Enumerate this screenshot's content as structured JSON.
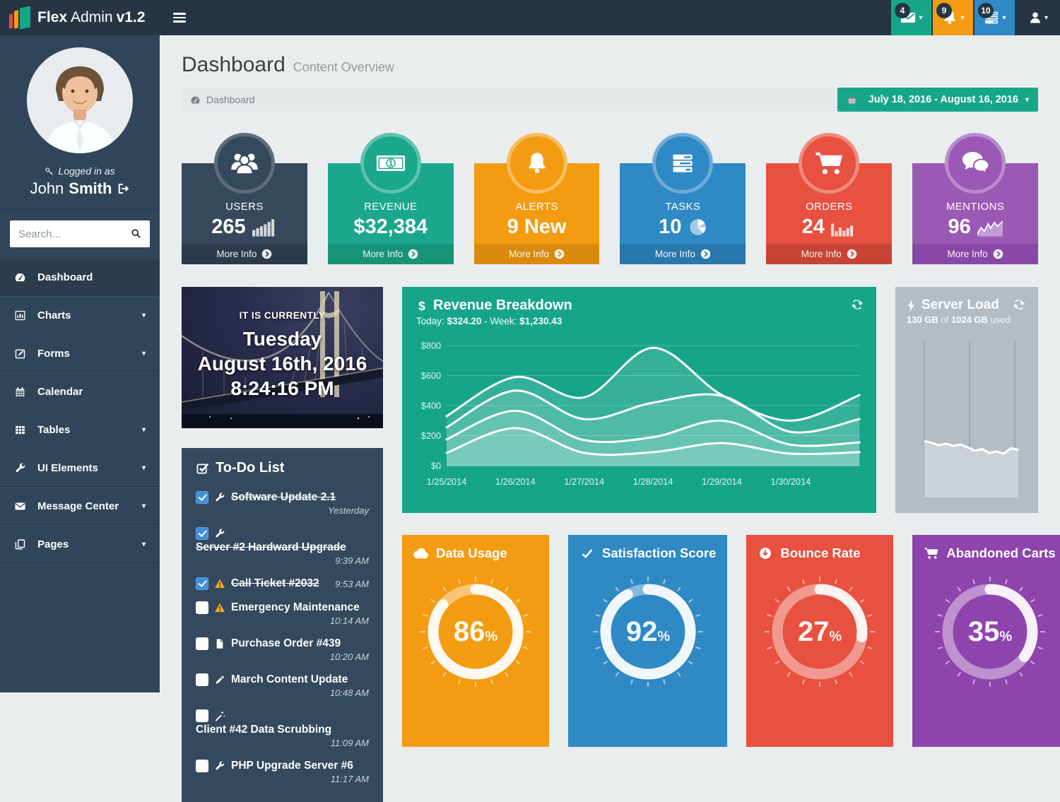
{
  "navbar": {
    "brand": {
      "word1": "Flex",
      "word2": "Admin",
      "version": "v1.2"
    },
    "dropdowns": [
      {
        "name": "messages",
        "count": "4",
        "color": "#18a689",
        "icon": "envelope"
      },
      {
        "name": "notifications",
        "count": "9",
        "color": "#f39c12",
        "icon": "bell"
      },
      {
        "name": "tasks",
        "count": "10",
        "color": "#2f89c5",
        "icon": "task-list"
      }
    ]
  },
  "sidebar": {
    "logged_in_as": "Logged in as",
    "first_name": "John",
    "last_name": "Smith",
    "search_placeholder": "Search...",
    "items": [
      {
        "label": "Dashboard",
        "icon": "dashboard",
        "active": true,
        "caret": false
      },
      {
        "label": "Charts",
        "icon": "chart",
        "active": false,
        "caret": true
      },
      {
        "label": "Forms",
        "icon": "form",
        "active": false,
        "caret": true
      },
      {
        "label": "Calendar",
        "icon": "calendar",
        "active": false,
        "caret": false
      },
      {
        "label": "Tables",
        "icon": "table",
        "active": false,
        "caret": true
      },
      {
        "label": "UI Elements",
        "icon": "wrench",
        "active": false,
        "caret": true
      },
      {
        "label": "Message Center",
        "icon": "mail",
        "active": false,
        "caret": true
      },
      {
        "label": "Pages",
        "icon": "pages",
        "active": false,
        "caret": true
      }
    ]
  },
  "header": {
    "title": "Dashboard",
    "subtitle": "Content Overview",
    "breadcrumb": "Dashboard",
    "date_range": "July 18, 2016 - August 16, 2016"
  },
  "stats": {
    "more_info": "More Info",
    "cards": [
      {
        "label": "USERS",
        "value": "265",
        "icon": "users",
        "spark": "bars-asc",
        "bg": "#36485c",
        "ring": "#5d6c7c",
        "footer": "#2c3b4b"
      },
      {
        "label": "REVENUE",
        "value": "$32,384",
        "icon": "money",
        "spark": "",
        "bg": "#1aa78c",
        "ring": "#5fc2ae",
        "footer": "#169379"
      },
      {
        "label": "ALERTS",
        "value": "9 New",
        "icon": "bell",
        "spark": "",
        "bg": "#f39c12",
        "ring": "#f7bd60",
        "footer": "#d98b0f"
      },
      {
        "label": "TASKS",
        "value": "10",
        "icon": "task-list",
        "spark": "pie",
        "bg": "#2f89c5",
        "ring": "#6fabd6",
        "footer": "#2877ad"
      },
      {
        "label": "ORDERS",
        "value": "24",
        "icon": "cart",
        "spark": "bars",
        "bg": "#e8503f",
        "ring": "#ef8b7c",
        "footer": "#c64434"
      },
      {
        "label": "MENTIONS",
        "value": "96",
        "icon": "comments",
        "spark": "area",
        "bg": "#9b59b6",
        "ring": "#ba8bcd",
        "footer": "#8a48a6"
      }
    ]
  },
  "clock": {
    "prefix": "IT IS CURRENTLY",
    "day": "Tuesday",
    "date": "August 16th, 2016",
    "time": "8:24:16 PM"
  },
  "revenue": {
    "title": "Revenue Breakdown",
    "today_label": "Today:",
    "today_value": "$324.20",
    "separator": "-",
    "week_label": "Week:",
    "week_value": "$1,230.43"
  },
  "server": {
    "title": "Server Load",
    "used_value": "130 GB",
    "of_word": "of",
    "total_value": "1024 GB",
    "used_word": "used"
  },
  "todo": {
    "title": "To-Do List",
    "items": [
      {
        "checked": true,
        "icon": "wrench",
        "text": "Software Update 2.1",
        "time": "Yesterday"
      },
      {
        "checked": true,
        "icon": "wrench",
        "text": "Server #2 Hardward Upgrade",
        "time": "9:39 AM"
      },
      {
        "checked": true,
        "icon": "warning",
        "text": "Call Ticket #2032",
        "time": "9:53 AM"
      },
      {
        "checked": false,
        "icon": "warning",
        "text": "Emergency Maintenance",
        "time": "10:14 AM"
      },
      {
        "checked": false,
        "icon": "file",
        "text": "Purchase Order #439",
        "time": "10:20 AM"
      },
      {
        "checked": false,
        "icon": "pencil",
        "text": "March Content Update",
        "time": "10:48 AM"
      },
      {
        "checked": false,
        "icon": "magic",
        "text": "Client #42 Data Scrubbing",
        "time": "11:09 AM"
      },
      {
        "checked": false,
        "icon": "wrench",
        "text": "PHP Upgrade Server #6",
        "time": "11:17 AM"
      }
    ]
  },
  "gauges": {
    "suffix": "%",
    "cards": [
      {
        "title": "Data Usage",
        "icon": "cloud",
        "value": 86,
        "bg": "#f39c12"
      },
      {
        "title": "Satisfaction Score",
        "icon": "check",
        "value": 92,
        "bg": "#2f89c5"
      },
      {
        "title": "Bounce Rate",
        "icon": "arrow-down-circle",
        "value": 27,
        "bg": "#e8503f"
      },
      {
        "title": "Abandoned Carts",
        "icon": "cart",
        "value": 35,
        "bg": "#8e44ad"
      }
    ]
  },
  "chart_data": [
    {
      "type": "area",
      "title": "Revenue Breakdown",
      "x_labels": [
        "1/25/2014",
        "1/26/2014",
        "1/27/2014",
        "1/28/2014",
        "1/29/2014",
        "1/30/2014"
      ],
      "y_ticks": [
        "$0",
        "$200",
        "$400",
        "$600",
        "$800"
      ],
      "ylim": [
        0,
        800
      ],
      "grid": true,
      "series": [
        {
          "name": "series-1",
          "values": [
            330,
            590,
            455,
            785,
            470,
            300,
            470
          ]
        },
        {
          "name": "series-2",
          "values": [
            255,
            500,
            310,
            420,
            465,
            225,
            310
          ]
        },
        {
          "name": "series-3",
          "values": [
            175,
            365,
            170,
            190,
            300,
            140,
            155
          ]
        },
        {
          "name": "series-4",
          "values": [
            85,
            250,
            85,
            90,
            150,
            80,
            90
          ]
        }
      ]
    },
    {
      "type": "area",
      "title": "Server Load",
      "ylim": [
        0,
        100
      ],
      "values": [
        36,
        35,
        33.5,
        34.5,
        33,
        34,
        32,
        30,
        31,
        28.5,
        29.5,
        28,
        31.5,
        30.5
      ]
    },
    {
      "type": "donut",
      "title": "Data Usage",
      "value": 86
    },
    {
      "type": "donut",
      "title": "Satisfaction Score",
      "value": 92
    },
    {
      "type": "donut",
      "title": "Bounce Rate",
      "value": 27
    },
    {
      "type": "donut",
      "title": "Abandoned Carts",
      "value": 35
    }
  ]
}
